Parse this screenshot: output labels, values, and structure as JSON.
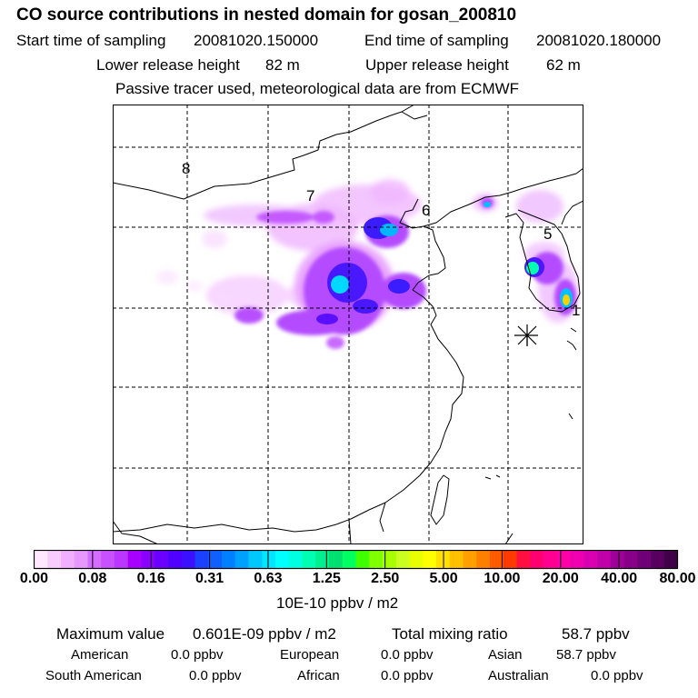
{
  "header": {
    "title": "CO  source contributions in nested domain for gosan_200810",
    "start_label": "Start time of sampling",
    "start_value": "20081020.150000",
    "end_label": "End time of sampling",
    "end_value": "20081020.180000",
    "lower_label": "Lower release height",
    "lower_value": "82 m",
    "upper_label": "Upper release height",
    "upper_value": "62 m",
    "note": "Passive tracer used, meteorological data are from ECMWF"
  },
  "map": {
    "region_labels": [
      "8",
      "7",
      "6",
      "5",
      "1"
    ],
    "receptor_marker": "asterisk-icon"
  },
  "colorbar": {
    "ticks": [
      "0.00",
      "0.08",
      "0.16",
      "0.31",
      "0.63",
      "1.25",
      "2.50",
      "5.00",
      "10.00",
      "20.00",
      "40.00",
      "80.00"
    ],
    "colors": [
      "#ffe8ff",
      "#f8ccff",
      "#f0b0ff",
      "#e698ff",
      "#d46cff",
      "#c850ff",
      "#bb36ff",
      "#a800ff",
      "#8a00ff",
      "#6a00ff",
      "#5000ff",
      "#3a10ff",
      "#1c40ff",
      "#1060ff",
      "#0080ff",
      "#00a0ff",
      "#00c8ff",
      "#00e6ff",
      "#00ffff",
      "#00ffe0",
      "#00ffb0",
      "#00f090",
      "#00e070",
      "#00ff60",
      "#40ff00",
      "#80ff00",
      "#a8ff00",
      "#c8ff20",
      "#e8ff00",
      "#ffff00",
      "#ffe000",
      "#ffc000",
      "#ffa000",
      "#ff8000",
      "#ff5a00",
      "#ff3a00",
      "#ff1040",
      "#ff0070",
      "#ff0090",
      "#ff00a8",
      "#ee00b0",
      "#d800b0",
      "#c000a8",
      "#a0009a",
      "#880088",
      "#700078",
      "#580060",
      "#400048"
    ],
    "unit": "10E-10 ppbv / m2"
  },
  "summary": {
    "max_label": "Maximum value",
    "max_value": "0.601E-09 ppbv / m2",
    "total_label": "Total mixing ratio",
    "total_value": "58.7 ppbv",
    "american_label": "American",
    "american_value": "0.0 ppbv",
    "european_label": "European",
    "european_value": "0.0 ppbv",
    "asian_label": "Asian",
    "asian_value": "58.7 ppbv",
    "south_american_label": "South American",
    "south_american_value": "0.0 ppbv",
    "african_label": "African",
    "african_value": "0.0 ppbv",
    "australian_label": "Australian",
    "australian_value": "0.0 ppbv"
  }
}
